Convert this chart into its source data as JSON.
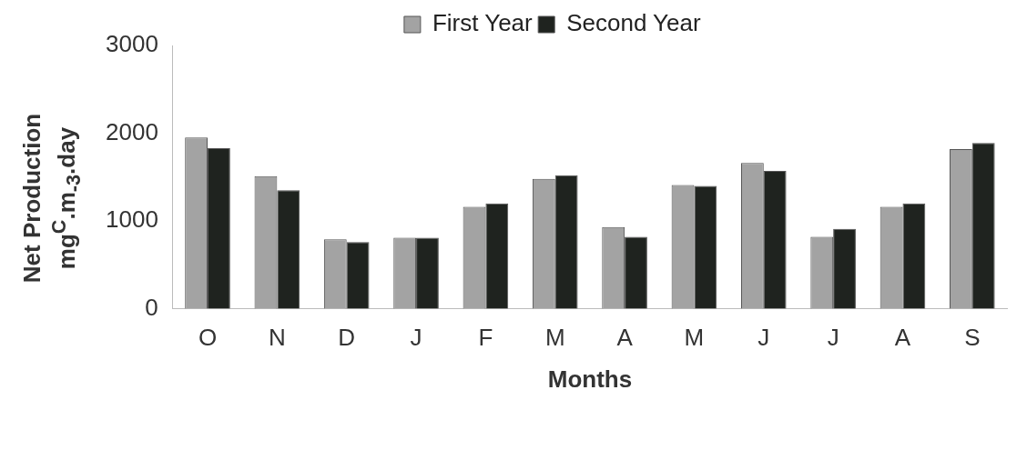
{
  "chart_data": {
    "type": "bar",
    "xlabel": "Months",
    "ylabel": "Net Production\nmg$^{C}$.m$_{-3}$.day",
    "categories": [
      "O",
      "N",
      "D",
      "J",
      "F",
      "M",
      "A",
      "M",
      "J",
      "J",
      "A",
      "S"
    ],
    "series": [
      {
        "name": "First Year",
        "color": "#a3a3a3",
        "values": [
          1950,
          1510,
          790,
          810,
          1160,
          1480,
          930,
          1410,
          1660,
          820,
          1160,
          1820
        ]
      },
      {
        "name": "Second Year",
        "color": "#1f231f",
        "values": [
          1830,
          1350,
          760,
          810,
          1200,
          1520,
          820,
          1400,
          1570,
          910,
          1200,
          1890
        ]
      }
    ],
    "ylim": [
      0,
      3000
    ],
    "yticks": [
      0,
      1000,
      2000,
      3000
    ],
    "grid": false,
    "legend": "top"
  }
}
